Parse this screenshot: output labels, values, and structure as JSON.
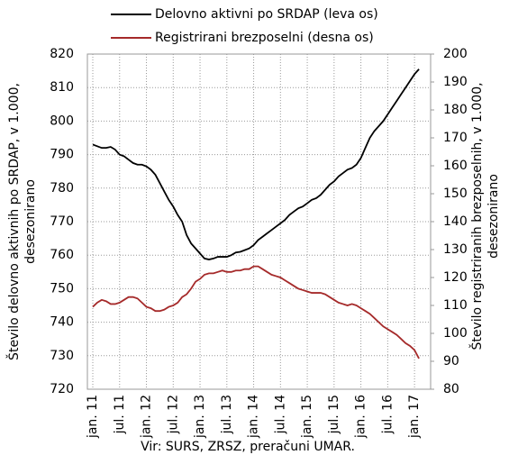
{
  "chart_data": {
    "type": "line",
    "categories": [
      "jan. 11",
      null,
      null,
      null,
      null,
      null,
      "jul. 11",
      null,
      null,
      null,
      null,
      null,
      "jan. 12",
      null,
      null,
      null,
      null,
      null,
      "jul. 12",
      null,
      null,
      null,
      null,
      null,
      "jan. 13",
      null,
      null,
      null,
      null,
      null,
      "jul. 13",
      null,
      null,
      null,
      null,
      null,
      "jan. 14",
      null,
      null,
      null,
      null,
      null,
      "jul. 14",
      null,
      null,
      null,
      null,
      null,
      "jan. 15",
      null,
      null,
      null,
      null,
      null,
      "jul. 15",
      null,
      null,
      null,
      null,
      null,
      "jan. 16",
      null,
      null,
      null,
      null,
      null,
      "jul. 16",
      null,
      null,
      null,
      null,
      null,
      "jan. 17",
      null
    ],
    "series": [
      {
        "name": "Delovno aktivni po SRDAP (leva os)",
        "color": "#000000",
        "axis": "y",
        "values": [
          793,
          792.5,
          792,
          792,
          792.3,
          791.5,
          790,
          789.5,
          788.5,
          787.5,
          787,
          787,
          786.5,
          785.5,
          784,
          781.5,
          779,
          776.5,
          774.5,
          772,
          770,
          766,
          763.5,
          762,
          760.5,
          759,
          758.7,
          759,
          759.5,
          759.5,
          759.5,
          760,
          760.8,
          761,
          761.5,
          762,
          763,
          764.5,
          765.5,
          766.5,
          767.5,
          768.5,
          769.5,
          770.5,
          772,
          773,
          774,
          774.5,
          775.5,
          776.5,
          777,
          778,
          779.5,
          781,
          782,
          783.5,
          784.5,
          785.5,
          786,
          787,
          789,
          792,
          795,
          797,
          798.5,
          800,
          802,
          804,
          806,
          808,
          810,
          812,
          814,
          815.5
        ]
      },
      {
        "name": "Registrirani brezposelni (desna os)",
        "color": "#a52a2a",
        "axis": "y2",
        "values": [
          109.5,
          111,
          112,
          111.5,
          110.5,
          110.5,
          111,
          112,
          113,
          113,
          112.5,
          111,
          109.5,
          109,
          108,
          108,
          108.5,
          109.5,
          110,
          111,
          113,
          114,
          116,
          118.5,
          119.5,
          121,
          121.5,
          121.5,
          122,
          122.5,
          122,
          122,
          122.5,
          122.5,
          123,
          123,
          124,
          124,
          123,
          122,
          121,
          120.5,
          120,
          119,
          118,
          117,
          116,
          115.5,
          115,
          114.5,
          114.5,
          114.5,
          114,
          113,
          112,
          111,
          110.5,
          110,
          110.5,
          110,
          109,
          108,
          107,
          105.5,
          104,
          102.5,
          101.5,
          100.5,
          99.5,
          98,
          96.5,
          95.5,
          94,
          91
        ]
      }
    ],
    "ylim": [
      720,
      820
    ],
    "yticks": [
      720,
      730,
      740,
      750,
      760,
      770,
      780,
      790,
      800,
      810,
      820
    ],
    "y2lim": [
      80,
      200
    ],
    "y2ticks": [
      80,
      90,
      100,
      110,
      120,
      130,
      140,
      150,
      160,
      170,
      180,
      190,
      200
    ],
    "y_label": [
      "Število delovno aktivnih po SRDAP, v 1.000,",
      "desezonirano"
    ],
    "y2_label": [
      "Število registriranih brezposelnih, v 1.000,",
      "desezonirano"
    ],
    "source": "Vir: SURS, ZRSZ, preračuni UMAR.",
    "grid": true
  }
}
